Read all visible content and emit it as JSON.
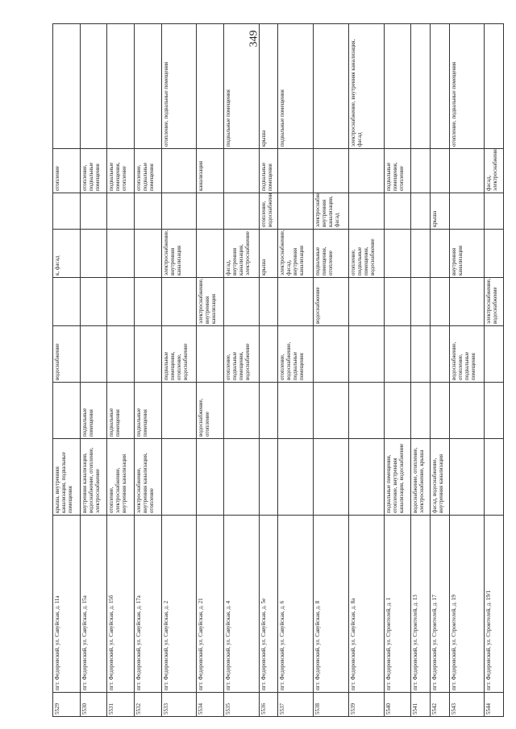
{
  "page_number": "349",
  "table": {
    "rows": [
      [
        "5529",
        "пгт. Федоровский, ул. Савуйская, д. 11а",
        "крыша, внутренняя канализация, подвальные помещения",
        null,
        "водоснабжение",
        null,
        "к, фасад",
        null,
        "отопление",
        null
      ],
      [
        "5530",
        "пгт. Федоровский, ул. Савуйская, д. 15а",
        "внутренняя канализация, водоснабжение, отопление, электроснабжение",
        "подвальные помещения",
        null,
        null,
        null,
        null,
        "отопление, подвальные помещения",
        null
      ],
      [
        "5531",
        "пгт. Федоровский, ул. Савуйская, д. 15б",
        "отопление, электроснабжение, внутренняя канализация",
        "подвальные помещения",
        null,
        null,
        null,
        null,
        "подвальные помещения, отопление",
        null
      ],
      [
        "5532",
        "пгт. Федоровский, ул. Савуйская, д. 17а",
        "электроснабжение, внутренняя канализация, отопление",
        "подвальные помещения",
        null,
        null,
        null,
        null,
        "отопление, подвальные помещения",
        null
      ],
      [
        "5533",
        "пгт. Федоровский, ул. Савуйская, д. 2",
        null,
        null,
        "подвальные помещения, отопление, водоснабжение",
        null,
        "электроснабжение, внутренняя канализация",
        null,
        null,
        "отопление, подвальные помещения"
      ],
      [
        "5534",
        "пгт. Федоровский, ул. Савуйская, д. 21",
        null,
        "водоснабжение, отопление",
        null,
        "электроснабжение, внутренняя канализация",
        null,
        null,
        "канализация",
        null
      ],
      [
        "5535",
        "пгт. Федоровский, ул. Савуйская, д. 4",
        null,
        null,
        "отопление, подвальные помещения, водоснабжение",
        null,
        "фасад, внутренняя канализация, электроснабжение",
        null,
        null,
        "подвальные помещения"
      ],
      [
        "5536",
        "пгт. Федоровский, ул. Савуйская, д. 5е",
        null,
        null,
        null,
        null,
        "крыша",
        "отопление, водоснабжение",
        "подвальные помещения",
        "крыша"
      ],
      [
        "5537",
        "пгт. Федоровский, ул. Савуйская, д. 6",
        null,
        null,
        "отопление, водоснабжение, подвальные помещения",
        null,
        "электроснабжение, фасад, внутренняя канализация",
        null,
        null,
        "подвальные помещения"
      ],
      [
        "5538",
        "пгт. Федоровский, ул. Савуйская, д. 8",
        null,
        null,
        null,
        "водоснабжение",
        "подвальные помещения, отопление",
        "электроснабжение, внутренняя канализация, фасад",
        null,
        null
      ],
      [
        "5539",
        "пгт. Федоровский, ул. Савуйская, д. 8а",
        null,
        null,
        null,
        null,
        "отопление, подвальные помещения, водоснабжение",
        null,
        null,
        "электроснабжение, внутренняя канализация, фасад"
      ],
      [
        "5540",
        "пгт. Федоровский, ул. Строителей, д. 1",
        "подвальные помещения, отопление, внутренняя канализация, водоснабжение",
        null,
        null,
        null,
        null,
        null,
        "подвальные помещения, отопление",
        null
      ],
      [
        "5541",
        "пгт. Федоровский, ул. Строителей, д. 13",
        "водоснабжение, отопление, электроснабжение, крыша",
        null,
        null,
        null,
        null,
        null,
        null,
        null
      ],
      [
        "5542",
        "пгт. Федоровский, ул. Строителей, д. 17",
        "фасад, водоснабжение, внутренняя канализация",
        null,
        null,
        null,
        null,
        "крыша",
        null,
        null
      ],
      [
        "5543",
        "пгт. Федоровский, ул. Строителей, д. 19",
        null,
        null,
        "водоснабжение, отопление, подвальные помещения",
        null,
        "внутренняя канализация",
        null,
        null,
        "отопление, подвальные помещения"
      ],
      [
        "5544",
        "пгт. Федоровский, ул. Строителей, д. 19/1",
        null,
        null,
        null,
        "электроснабжение, водоснабжение",
        null,
        null,
        "фасад, электроснабжение",
        null
      ]
    ]
  }
}
